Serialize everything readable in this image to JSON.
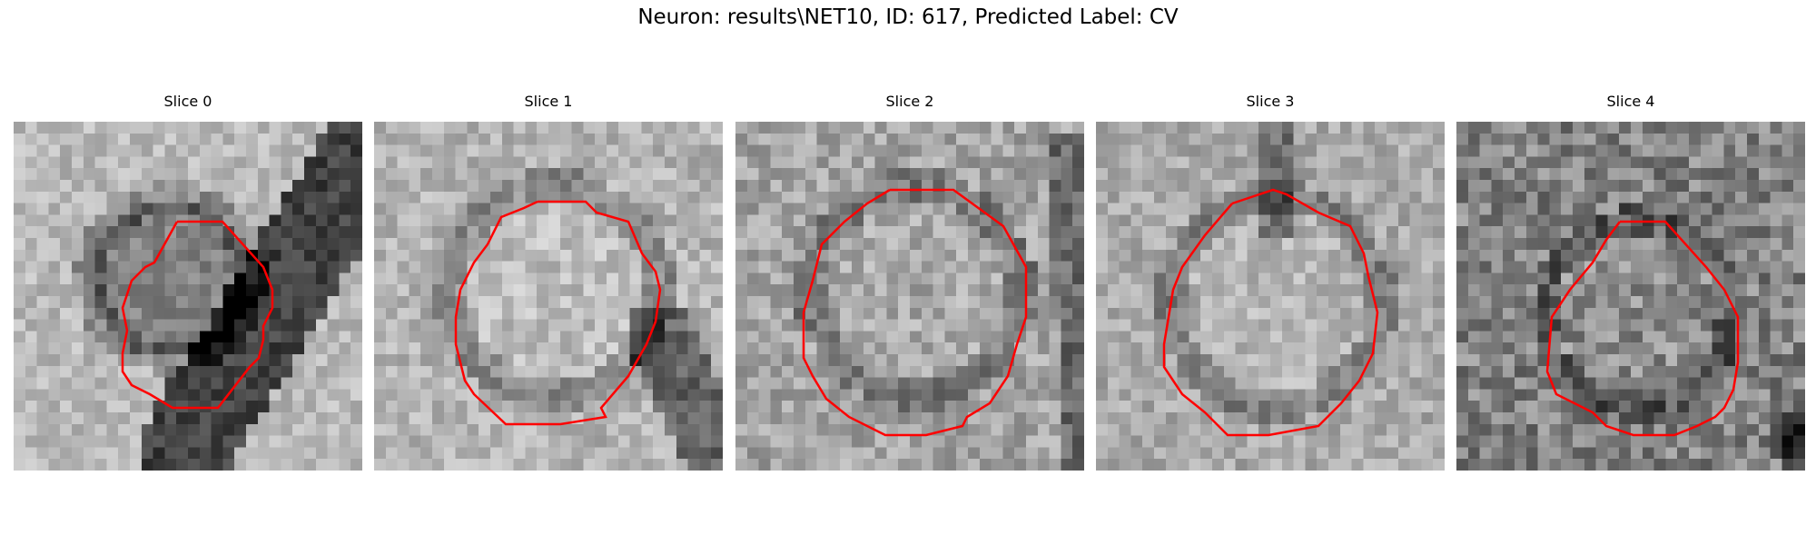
{
  "figure": {
    "suptitle": "Neuron: results\\NET10, ID: 617, Predicted Label: CV"
  },
  "slices": [
    {
      "title": "Slice 0"
    },
    {
      "title": "Slice 1"
    },
    {
      "title": "Slice 2"
    },
    {
      "title": "Slice 3"
    },
    {
      "title": "Slice 4"
    }
  ],
  "contour_color": "#ff0000"
}
